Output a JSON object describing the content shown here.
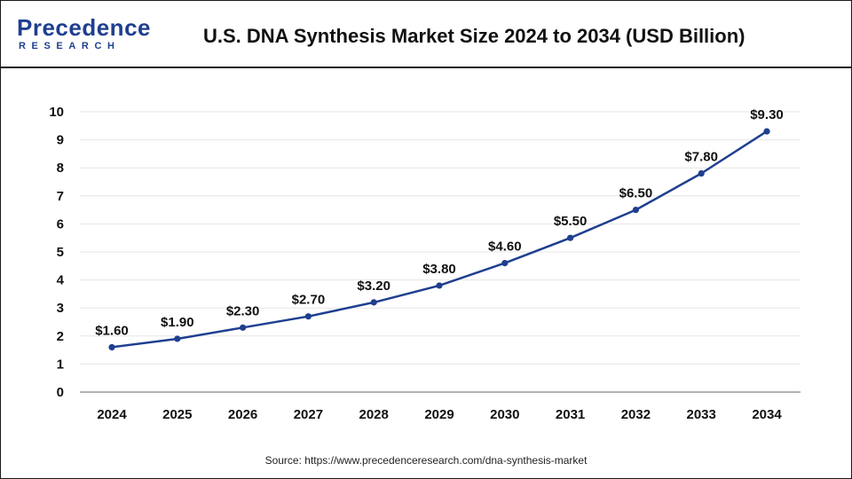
{
  "header": {
    "logo_main": "Precedence",
    "logo_sub": "RESEARCH",
    "title": "U.S. DNA Synthesis Market Size 2024 to 2034 (USD Billion)"
  },
  "source": "Source: https://www.precedenceresearch.com/dna-synthesis-market",
  "colors": {
    "line": "#1f3f8f",
    "brand": "#1f3f8f",
    "grid": "#e6e6e6"
  },
  "chart_data": {
    "type": "line",
    "title": "U.S. DNA Synthesis Market Size 2024 to 2034 (USD Billion)",
    "xlabel": "",
    "ylabel": "",
    "categories": [
      "2024",
      "2025",
      "2026",
      "2027",
      "2028",
      "2029",
      "2030",
      "2031",
      "2032",
      "2033",
      "2034"
    ],
    "values": [
      1.6,
      1.9,
      2.3,
      2.7,
      3.2,
      3.8,
      4.6,
      5.5,
      6.5,
      7.8,
      9.3
    ],
    "data_labels": [
      "$1.60",
      "$1.90",
      "$2.30",
      "$2.70",
      "$3.20",
      "$3.80",
      "$4.60",
      "$5.50",
      "$6.50",
      "$7.80",
      "$9.30"
    ],
    "y_ticks": [
      "0",
      "1",
      "2",
      "3",
      "4",
      "5",
      "6",
      "7",
      "8",
      "9",
      "10"
    ],
    "ylim": [
      0,
      10
    ],
    "grid": true,
    "legend": "none"
  }
}
